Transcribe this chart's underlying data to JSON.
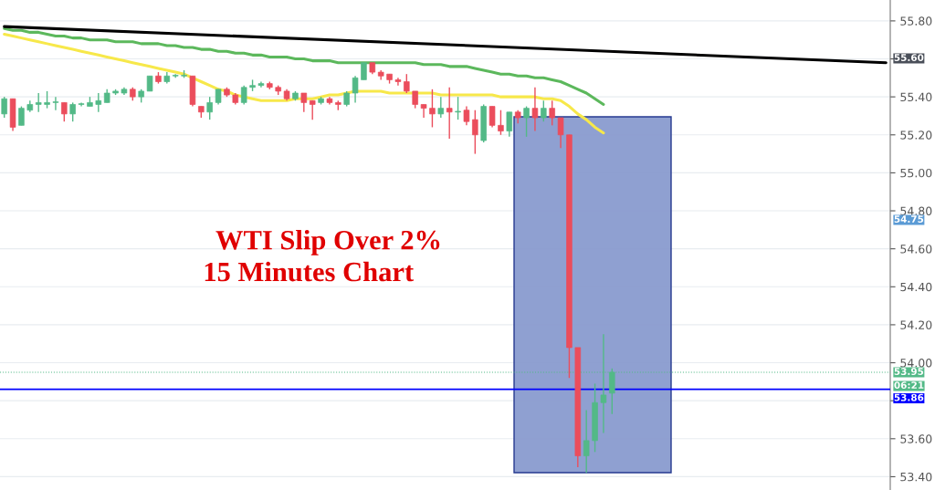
{
  "chart_data": {
    "type": "candlestick",
    "title": "WTI Slip Over 2%",
    "subtitle": "15 Minutes Chart",
    "categories": [
      null,
      null,
      null,
      null,
      null,
      null,
      null,
      null,
      null,
      null,
      null,
      null,
      null,
      null,
      null,
      null,
      null,
      null,
      null,
      null,
      null,
      null,
      null,
      null,
      null,
      null,
      null,
      null,
      null,
      null,
      null,
      null,
      null,
      null,
      null,
      null,
      null,
      null,
      null,
      null,
      null,
      null,
      null,
      null,
      null,
      null,
      null,
      null,
      null,
      null,
      null,
      null,
      null,
      null,
      null,
      null,
      null,
      null,
      null,
      null,
      null,
      null,
      null,
      null,
      null,
      null,
      null,
      null,
      null,
      null,
      null,
      null,
      null,
      null,
      null,
      null,
      null,
      null,
      null,
      null,
      null,
      null,
      null,
      null,
      null,
      null,
      null,
      null,
      null,
      null,
      null,
      null,
      null,
      null,
      null,
      null,
      null,
      null,
      null,
      null,
      null,
      null,
      null,
      null
    ],
    "ohlc": [
      [
        55.31,
        55.4,
        55.29,
        55.39
      ],
      [
        55.39,
        55.39,
        55.22,
        55.24
      ],
      [
        55.25,
        55.35,
        55.25,
        55.34
      ],
      [
        55.33,
        55.38,
        55.32,
        55.36
      ],
      [
        55.36,
        55.42,
        55.32,
        55.37
      ],
      [
        55.36,
        55.43,
        55.34,
        55.37
      ],
      [
        55.37,
        55.4,
        55.33,
        55.37
      ],
      [
        55.37,
        55.37,
        55.27,
        55.31
      ],
      [
        55.31,
        55.37,
        55.27,
        55.36
      ],
      [
        55.36,
        55.37,
        55.35,
        55.36
      ],
      [
        55.35,
        55.4,
        55.35,
        55.37
      ],
      [
        55.36,
        55.42,
        55.32,
        55.38
      ],
      [
        55.37,
        55.44,
        55.37,
        55.42
      ],
      [
        55.42,
        55.44,
        55.41,
        55.43
      ],
      [
        55.42,
        55.45,
        55.41,
        55.44
      ],
      [
        55.44,
        55.45,
        55.38,
        55.4
      ],
      [
        55.4,
        55.44,
        55.37,
        55.43
      ],
      [
        55.43,
        55.51,
        55.43,
        55.51
      ],
      [
        55.51,
        55.53,
        55.47,
        55.48
      ],
      [
        55.48,
        55.53,
        55.47,
        55.51
      ],
      [
        55.51,
        55.52,
        55.5,
        55.51
      ],
      [
        55.51,
        55.54,
        55.5,
        55.51
      ],
      [
        55.51,
        55.51,
        55.35,
        55.36
      ],
      [
        55.35,
        55.35,
        55.29,
        55.32
      ],
      [
        55.32,
        55.4,
        55.28,
        55.37
      ],
      [
        55.37,
        55.44,
        55.36,
        55.44
      ],
      [
        55.44,
        55.45,
        55.4,
        55.41
      ],
      [
        55.41,
        55.42,
        55.36,
        55.37
      ],
      [
        55.37,
        55.46,
        55.36,
        55.45
      ],
      [
        55.45,
        55.49,
        55.43,
        55.46
      ],
      [
        55.46,
        55.48,
        55.45,
        55.47
      ],
      [
        55.47,
        55.48,
        55.44,
        55.45
      ],
      [
        55.45,
        55.46,
        55.41,
        55.43
      ],
      [
        55.43,
        55.44,
        55.38,
        55.39
      ],
      [
        55.39,
        55.43,
        55.38,
        55.42
      ],
      [
        55.42,
        55.42,
        55.32,
        55.37
      ],
      [
        55.38,
        55.38,
        55.28,
        55.36
      ],
      [
        55.37,
        55.4,
        55.36,
        55.39
      ],
      [
        55.39,
        55.4,
        55.36,
        55.37
      ],
      [
        55.37,
        55.38,
        55.33,
        55.36
      ],
      [
        55.36,
        55.43,
        55.35,
        55.42
      ],
      [
        55.42,
        55.51,
        55.37,
        55.5
      ],
      [
        55.49,
        55.58,
        55.49,
        55.58
      ],
      [
        55.58,
        55.58,
        55.52,
        55.53
      ],
      [
        55.53,
        55.54,
        55.49,
        55.51
      ],
      [
        55.52,
        55.52,
        55.47,
        55.49
      ],
      [
        55.49,
        55.5,
        55.46,
        55.48
      ],
      [
        55.48,
        55.52,
        55.42,
        55.43
      ],
      [
        55.43,
        55.43,
        55.34,
        55.36
      ],
      [
        55.36,
        55.36,
        55.29,
        55.34
      ],
      [
        55.34,
        55.44,
        55.24,
        55.31
      ],
      [
        55.31,
        55.4,
        55.29,
        55.34
      ],
      [
        55.34,
        55.45,
        55.18,
        55.32
      ],
      [
        55.32,
        55.4,
        55.28,
        55.32
      ],
      [
        55.33,
        55.35,
        55.25,
        55.27
      ],
      [
        55.28,
        55.33,
        55.1,
        55.2
      ],
      [
        55.17,
        55.36,
        55.16,
        55.35
      ],
      [
        55.35,
        55.35,
        55.24,
        55.25
      ],
      [
        55.25,
        55.33,
        55.2,
        55.22
      ],
      [
        55.22,
        55.32,
        55.19,
        55.32
      ],
      [
        55.32,
        55.33,
        55.26,
        55.29
      ],
      [
        55.29,
        55.35,
        55.19,
        55.34
      ],
      [
        55.34,
        55.45,
        55.22,
        55.29
      ],
      [
        55.29,
        55.38,
        55.27,
        55.34
      ],
      [
        55.34,
        55.38,
        55.25,
        55.29
      ],
      [
        55.29,
        55.29,
        55.13,
        55.2
      ],
      [
        55.2,
        55.2,
        53.92,
        54.08
      ],
      [
        54.08,
        54.08,
        53.45,
        53.51
      ],
      [
        53.51,
        53.75,
        53.42,
        53.59
      ],
      [
        53.59,
        53.89,
        53.53,
        53.79
      ],
      [
        53.79,
        54.15,
        53.63,
        53.83
      ],
      [
        53.84,
        53.97,
        53.73,
        53.95
      ],
      null,
      null,
      null,
      null,
      null,
      null,
      null,
      null,
      null,
      null,
      null,
      null,
      null,
      null,
      null,
      null,
      null,
      null,
      null,
      null,
      null,
      null,
      null,
      null,
      null,
      null,
      null,
      null,
      null,
      null,
      null,
      null
    ],
    "colors": [
      "#53b987",
      "#eb4d5c",
      "#53b987",
      "#53b987",
      "#53b987",
      "#53b987",
      "#53b987",
      "#eb4d5c",
      "#53b987",
      "#53b987",
      "#53b987",
      "#53b987",
      "#53b987",
      "#53b987",
      "#53b987",
      "#eb4d5c",
      "#53b987",
      "#53b987",
      "#eb4d5c",
      "#53b987",
      "#53b987",
      "#53b987",
      "#eb4d5c",
      "#eb4d5c",
      "#53b987",
      "#53b987",
      "#eb4d5c",
      "#eb4d5c",
      "#53b987",
      "#53b987",
      "#53b987",
      "#eb4d5c",
      "#eb4d5c",
      "#eb4d5c",
      "#53b987",
      "#eb4d5c",
      "#eb4d5c",
      "#53b987",
      "#eb4d5c",
      "#eb4d5c",
      "#53b987",
      "#53b987",
      "#53b987",
      "#eb4d5c",
      "#eb4d5c",
      "#eb4d5c",
      "#eb4d5c",
      "#eb4d5c",
      "#eb4d5c",
      "#eb4d5c",
      "#eb4d5c",
      "#53b987",
      "#eb4d5c",
      "#53b987",
      "#eb4d5c",
      "#eb4d5c",
      "#53b987",
      "#eb4d5c",
      "#eb4d5c",
      "#53b987",
      "#eb4d5c",
      "#53b987",
      "#eb4d5c",
      "#53b987",
      "#eb4d5c",
      "#eb4d5c",
      "#eb4d5c",
      "#eb4d5c",
      "#53b987",
      "#53b987",
      "#53b987",
      "#53b987",
      null,
      null,
      null,
      null,
      null,
      null,
      null,
      null,
      null,
      null,
      null,
      null,
      null,
      null,
      null,
      null,
      null,
      null,
      null,
      null,
      null,
      null,
      null,
      null,
      null,
      null,
      null,
      null,
      null,
      null,
      null,
      null
    ],
    "series": [
      {
        "type": "line",
        "color": "#f7e84a",
        "values": [
          55.73,
          55.72,
          55.71,
          55.7,
          55.69,
          55.68,
          55.67,
          55.66,
          55.65,
          55.64,
          55.63,
          55.62,
          55.61,
          55.6,
          55.59,
          55.58,
          55.57,
          55.56,
          55.55,
          55.54,
          55.53,
          55.52,
          55.5,
          55.48,
          55.46,
          55.44,
          55.43,
          55.41,
          55.4,
          55.39,
          55.38,
          55.38,
          55.38,
          55.38,
          55.39,
          55.39,
          55.39,
          55.4,
          55.41,
          55.41,
          55.42,
          55.43,
          55.43,
          55.43,
          55.43,
          55.42,
          55.42,
          55.42,
          55.42,
          55.42,
          55.42,
          55.41,
          55.41,
          55.41,
          55.41,
          55.41,
          55.41,
          55.41,
          55.4,
          55.4,
          55.4,
          55.4,
          55.4,
          55.39,
          55.39,
          55.38,
          55.35,
          55.31,
          55.28,
          55.24,
          55.21,
          null,
          null,
          null,
          null,
          null,
          null,
          null,
          null,
          null,
          null,
          null,
          null,
          null,
          null,
          null,
          null,
          null,
          null,
          null,
          null,
          null,
          null,
          null,
          null,
          null,
          null,
          null,
          null,
          null,
          null,
          null,
          null,
          null
        ]
      },
      {
        "type": "line",
        "color": "#5cb85c",
        "values": [
          55.76,
          55.75,
          55.75,
          55.74,
          55.74,
          55.73,
          55.72,
          55.72,
          55.71,
          55.71,
          55.7,
          55.7,
          55.7,
          55.69,
          55.69,
          55.69,
          55.68,
          55.68,
          55.68,
          55.67,
          55.67,
          55.66,
          55.66,
          55.65,
          55.65,
          55.64,
          55.64,
          55.63,
          55.63,
          55.62,
          55.62,
          55.61,
          55.61,
          55.61,
          55.6,
          55.6,
          55.59,
          55.59,
          55.59,
          55.58,
          55.58,
          55.58,
          55.58,
          55.58,
          55.58,
          55.58,
          55.58,
          55.58,
          55.58,
          55.57,
          55.57,
          55.57,
          55.56,
          55.56,
          55.56,
          55.55,
          55.54,
          55.53,
          55.52,
          55.52,
          55.51,
          55.51,
          55.5,
          55.5,
          55.49,
          55.48,
          55.46,
          55.44,
          55.42,
          55.39,
          55.36,
          null,
          null,
          null,
          null,
          null,
          null,
          null,
          null,
          null,
          null,
          null,
          null,
          null,
          null,
          null,
          null,
          null,
          null,
          null,
          null,
          null,
          null,
          null,
          null,
          null,
          null,
          null,
          null,
          null,
          null,
          null,
          null,
          null
        ]
      },
      {
        "type": "line",
        "color": "#000000",
        "values": [
          55.77,
          null,
          null,
          null,
          null,
          null,
          null,
          null,
          null,
          null,
          null,
          null,
          null,
          null,
          null,
          null,
          null,
          null,
          null,
          null,
          null,
          null,
          null,
          null,
          null,
          null,
          null,
          null,
          null,
          null,
          null,
          null,
          null,
          null,
          null,
          null,
          null,
          null,
          null,
          null,
          null,
          null,
          null,
          null,
          null,
          null,
          null,
          null,
          null,
          null,
          null,
          null,
          null,
          null,
          null,
          null,
          null,
          null,
          null,
          null,
          null,
          null,
          null,
          null,
          null,
          null,
          null,
          null,
          null,
          null,
          null,
          null,
          null,
          null,
          null,
          null,
          null,
          null,
          null,
          null,
          null,
          null,
          null,
          null,
          null,
          null,
          null,
          null,
          null,
          null,
          null,
          null,
          null,
          null,
          null,
          null,
          null,
          null,
          null,
          null,
          null,
          null,
          null,
          55.58
        ]
      }
    ],
    "ylim": [
      53.33,
      55.91
    ],
    "yticks": [
      {
        "value": 53.4,
        "label": "53.40"
      },
      {
        "value": 53.6,
        "label": "53.60"
      },
      {
        "value": 53.8,
        "label": null
      },
      {
        "value": 54.0,
        "label": "54.00"
      },
      {
        "value": 54.2,
        "label": "54.20"
      },
      {
        "value": 54.4,
        "label": "54.40"
      },
      {
        "value": 54.6,
        "label": "54.60"
      },
      {
        "value": 54.8,
        "label": "54.80"
      },
      {
        "value": 55.0,
        "label": "55.00"
      },
      {
        "value": 55.2,
        "label": "55.20"
      },
      {
        "value": 55.4,
        "label": "55.40"
      },
      {
        "value": 55.6,
        "label": null
      },
      {
        "value": 55.8,
        "label": "55.80"
      }
    ],
    "tick_labels": "y",
    "grid": "y",
    "ref_lines": [
      {
        "axis": "y",
        "value": 53.95,
        "label": "53.95",
        "color": "#53b987",
        "line_style": "dotted"
      },
      {
        "axis": "y",
        "value": 53.86,
        "label": "53.86",
        "color": "#0000ff",
        "line_style": "solid"
      }
    ],
    "annotations": [
      "55.60",
      "54.75",
      "06:21"
    ]
  }
}
